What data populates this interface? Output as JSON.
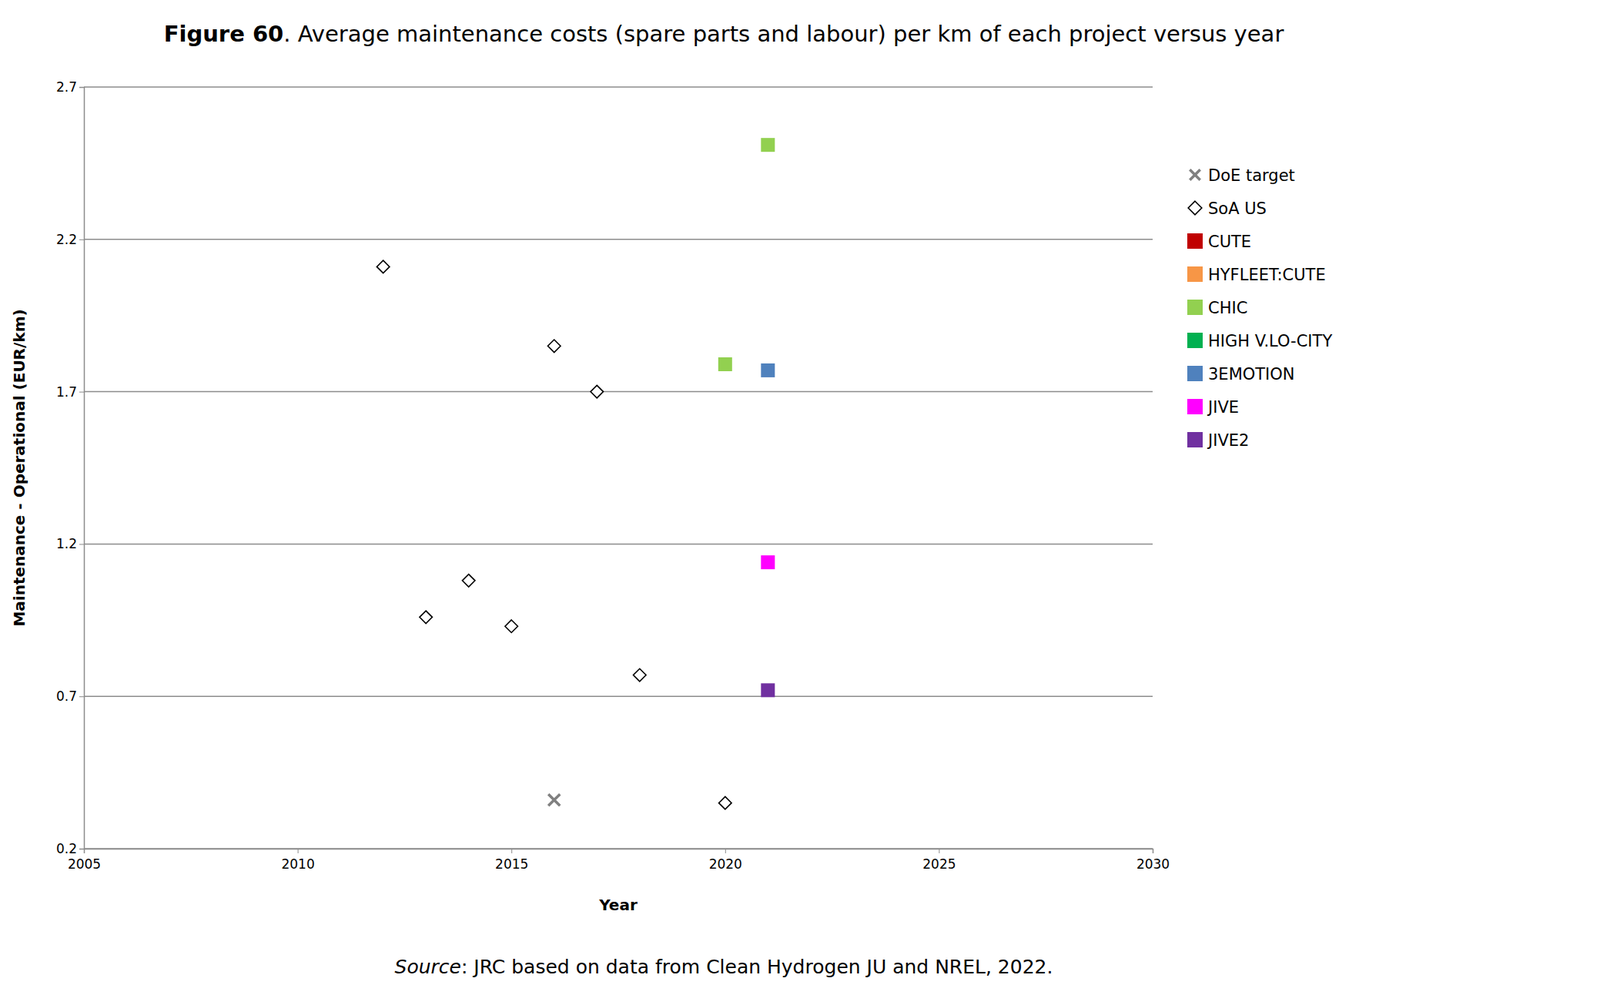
{
  "chart_data": {
    "type": "scatter",
    "title": "Figure 60. Average maintenance costs (spare parts and labour) per km of each project versus year",
    "source": "Source: JRC based on data from Clean Hydrogen JU and NREL, 2022.",
    "x_label": "Year",
    "y_label": "Maintenance - Operational (EUR/km)",
    "xlim": [
      2005,
      2030
    ],
    "xticks": [
      2005,
      2010,
      2015,
      2020,
      2025,
      2030
    ],
    "ylim": [
      0.2,
      2.7
    ],
    "yticks": [
      0.2,
      0.7,
      1.2,
      1.7,
      2.2,
      2.7
    ],
    "grid": true,
    "legend": "right",
    "series": [
      {
        "name": "DoE target",
        "color": "#808080",
        "marker": "x",
        "x": [
          2016
        ],
        "values": [
          0.36
        ]
      },
      {
        "name": "SoA US",
        "color": "#000000",
        "marker": "diamond",
        "x": [
          2012,
          2013,
          2014,
          2015,
          2016,
          2017,
          2018,
          2020
        ],
        "values": [
          2.11,
          0.96,
          1.08,
          0.93,
          1.85,
          1.7,
          0.77,
          0.35
        ]
      },
      {
        "name": "CUTE",
        "color": "#c00000",
        "marker": "square",
        "x": [],
        "values": []
      },
      {
        "name": "HYFLEET:CUTE",
        "color": "#f79646",
        "marker": "square",
        "x": [],
        "values": []
      },
      {
        "name": "CHIC",
        "color": "#92d050",
        "marker": "square",
        "x": [
          2020,
          2021
        ],
        "values": [
          1.79,
          2.51
        ]
      },
      {
        "name": "HIGH V.LO-CITY",
        "color": "#00b050",
        "marker": "square",
        "x": [],
        "values": []
      },
      {
        "name": "3EMOTION",
        "color": "#4f81bd",
        "marker": "square",
        "x": [
          2021
        ],
        "values": [
          1.77
        ]
      },
      {
        "name": "JIVE",
        "color": "#ff00ff",
        "marker": "square",
        "x": [
          2021
        ],
        "values": [
          1.14
        ]
      },
      {
        "name": "JIVE2",
        "color": "#7030a0",
        "marker": "square",
        "x": [
          2021
        ],
        "values": [
          0.72
        ]
      }
    ]
  }
}
